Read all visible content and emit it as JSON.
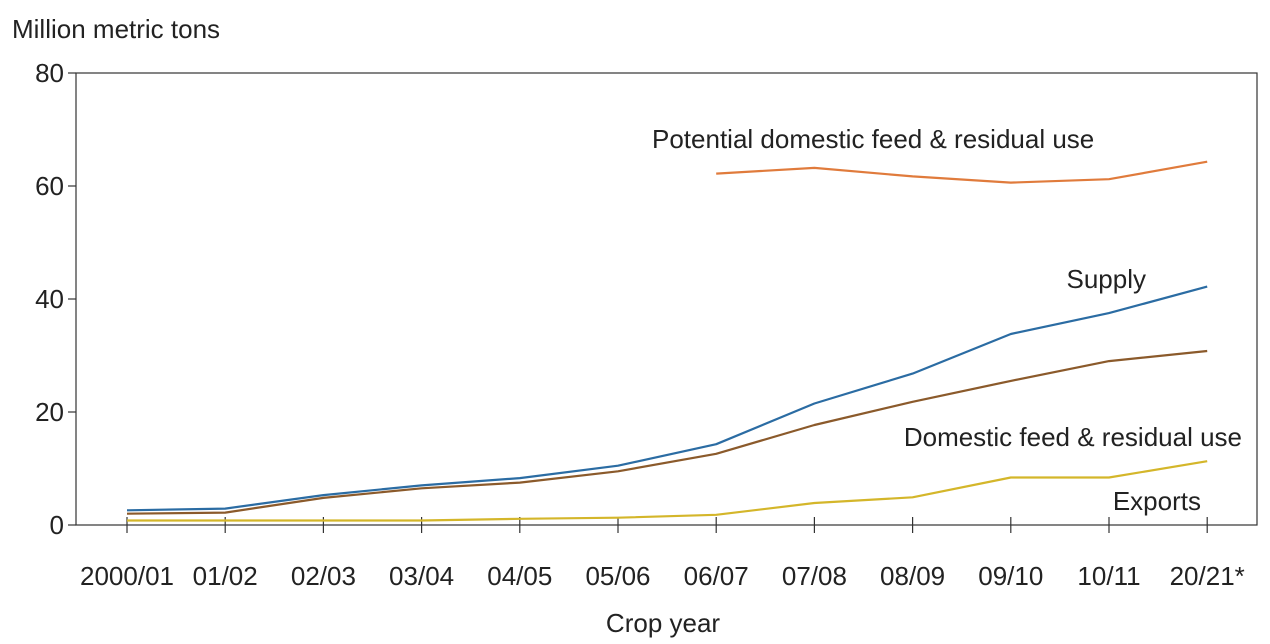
{
  "chart_data": {
    "type": "line",
    "title": "",
    "ylabel": "Million metric tons",
    "xlabel": "Crop year",
    "ylim": [
      0,
      80
    ],
    "yticks": [
      0,
      20,
      40,
      60,
      80
    ],
    "categories": [
      "2000/01",
      "01/02",
      "02/03",
      "03/04",
      "04/05",
      "05/06",
      "06/07",
      "07/08",
      "08/09",
      "09/10",
      "10/11",
      "20/21*"
    ],
    "grid": false,
    "series": [
      {
        "name": "Potential domestic feed & residual use",
        "color": "#e07b3c",
        "values": [
          null,
          null,
          null,
          null,
          null,
          null,
          62.2,
          63.2,
          61.7,
          60.6,
          61.2,
          64.3
        ]
      },
      {
        "name": "Supply",
        "color": "#2b6ca3",
        "values": [
          2.6,
          2.9,
          5.3,
          7.0,
          8.3,
          10.5,
          14.3,
          21.5,
          26.8,
          33.8,
          37.5,
          42.2
        ]
      },
      {
        "name": "Domestic feed & residual use",
        "color": "#8b5a2b",
        "values": [
          2.0,
          2.2,
          4.8,
          6.5,
          7.5,
          9.5,
          12.6,
          17.7,
          21.8,
          25.5,
          29.0,
          30.8
        ]
      },
      {
        "name": "Exports",
        "color": "#d4b62a",
        "values": [
          0.8,
          0.8,
          0.8,
          0.8,
          1.1,
          1.3,
          1.8,
          3.9,
          4.9,
          8.4,
          8.4,
          11.3
        ]
      }
    ]
  }
}
